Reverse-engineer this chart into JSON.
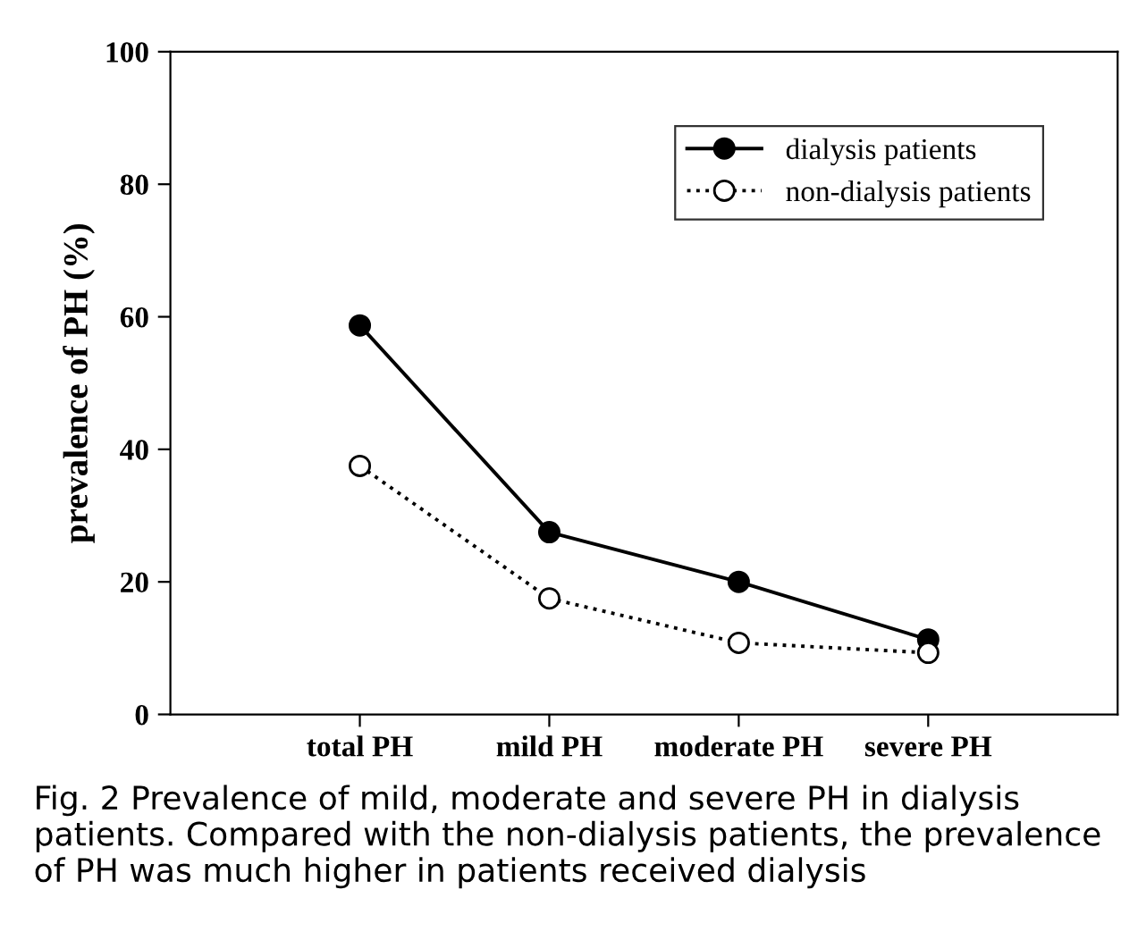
{
  "chart_data": {
    "type": "line",
    "categories": [
      "total PH",
      "mild PH",
      "moderate PH",
      "severe PH"
    ],
    "series": [
      {
        "name": "dialysis patients",
        "color": "#000000",
        "values": [
          58.7,
          27.5,
          20.0,
          11.3
        ],
        "marker": "circle",
        "line_style": "solid"
      },
      {
        "name": "non-dialysis patients",
        "color": "#000000",
        "values": [
          37.5,
          17.5,
          10.8,
          9.3
        ],
        "marker": "circle",
        "line_style": "dotted"
      }
    ],
    "ylabel": "prevalence of PH (%)",
    "ylim": [
      0,
      100
    ],
    "yticks": [
      0,
      20,
      40,
      60,
      80,
      100
    ],
    "grid": false,
    "legend": "top right",
    "annotations": [
      "Fig. 2 Prevalence of mild, moderate and severe PH in dialysis patients. Compared with the non-dialysis patients, the prevalence of PH was much higher in patients received dialysis"
    ]
  }
}
